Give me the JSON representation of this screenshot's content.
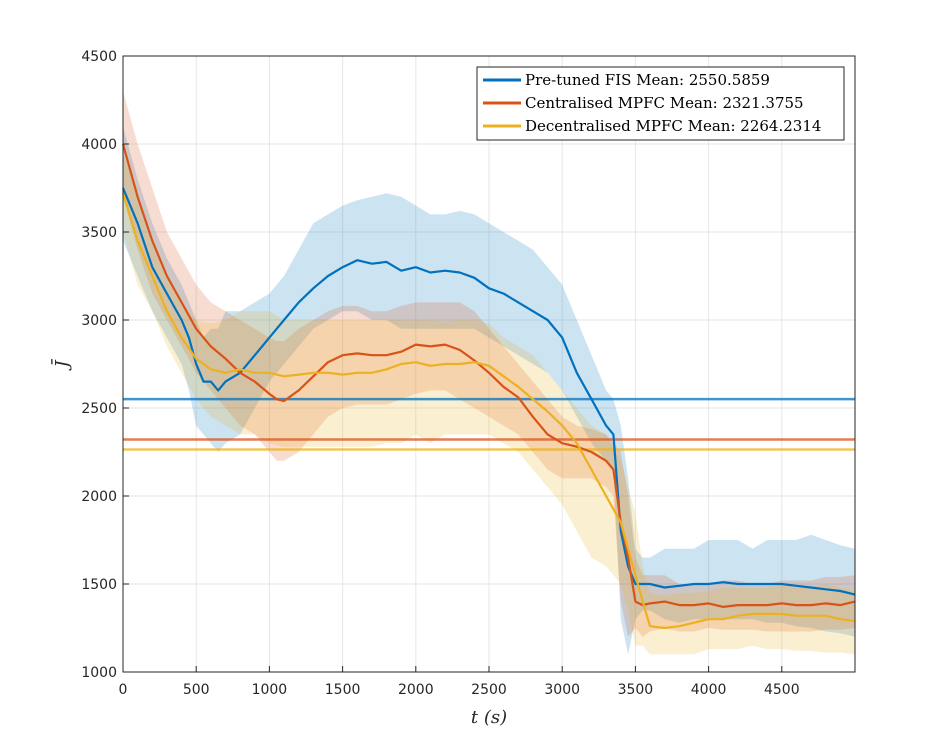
{
  "chart_data": {
    "type": "line",
    "xlabel": "t (s)",
    "ylabel": "J̄",
    "xlim": [
      0,
      5000
    ],
    "ylim": [
      1000,
      4500
    ],
    "xticks": [
      0,
      500,
      1000,
      1500,
      2000,
      2500,
      3000,
      3500,
      4000,
      4500
    ],
    "yticks": [
      1000,
      1500,
      2000,
      2500,
      3000,
      3500,
      4000,
      4500
    ],
    "grid": true,
    "legend_position": "top-right",
    "series": [
      {
        "name": "Pre-tuned FIS Mean: 2550.5859",
        "color": "#0072BD",
        "mean_value": 2550.5859,
        "x": [
          0,
          100,
          200,
          300,
          400,
          450,
          500,
          550,
          600,
          650,
          700,
          800,
          900,
          1000,
          1100,
          1200,
          1300,
          1400,
          1500,
          1600,
          1700,
          1800,
          1900,
          2000,
          2100,
          2200,
          2300,
          2400,
          2500,
          2600,
          2700,
          2800,
          2900,
          3000,
          3100,
          3200,
          3300,
          3350,
          3400,
          3450,
          3500,
          3550,
          3600,
          3700,
          3800,
          3900,
          4000,
          4100,
          4200,
          4300,
          4400,
          4500,
          4600,
          4700,
          4800,
          4900,
          5000
        ],
        "y": [
          3750,
          3550,
          3300,
          3150,
          3000,
          2900,
          2750,
          2650,
          2650,
          2600,
          2650,
          2700,
          2800,
          2900,
          3000,
          3100,
          3180,
          3250,
          3300,
          3340,
          3320,
          3330,
          3280,
          3300,
          3270,
          3280,
          3270,
          3240,
          3180,
          3150,
          3100,
          3050,
          3000,
          2900,
          2700,
          2550,
          2400,
          2350,
          1800,
          1600,
          1500,
          1500,
          1500,
          1480,
          1490,
          1500,
          1500,
          1510,
          1500,
          1500,
          1500,
          1500,
          1490,
          1480,
          1470,
          1460,
          1440
        ],
        "upper": [
          4100,
          3800,
          3550,
          3350,
          3200,
          3100,
          3000,
          2900,
          2950,
          2950,
          3050,
          3050,
          3100,
          3150,
          3250,
          3400,
          3550,
          3600,
          3650,
          3680,
          3700,
          3720,
          3700,
          3650,
          3600,
          3600,
          3620,
          3600,
          3550,
          3500,
          3450,
          3400,
          3300,
          3200,
          3000,
          2800,
          2600,
          2550,
          2400,
          2100,
          1700,
          1650,
          1650,
          1700,
          1700,
          1700,
          1750,
          1750,
          1750,
          1700,
          1750,
          1750,
          1750,
          1780,
          1750,
          1720,
          1700
        ],
        "lower": [
          3450,
          3250,
          3050,
          2900,
          2750,
          2600,
          2400,
          2350,
          2300,
          2250,
          2300,
          2350,
          2500,
          2650,
          2750,
          2850,
          2950,
          3000,
          3050,
          3050,
          3000,
          3000,
          2950,
          2950,
          2950,
          2950,
          2950,
          2950,
          2900,
          2850,
          2800,
          2750,
          2700,
          2600,
          2450,
          2300,
          2200,
          2150,
          1300,
          1100,
          1300,
          1350,
          1350,
          1300,
          1280,
          1300,
          1300,
          1300,
          1300,
          1300,
          1280,
          1280,
          1260,
          1250,
          1230,
          1220,
          1200
        ]
      },
      {
        "name": "Centralised MPFC Mean: 2321.3755",
        "color": "#D95319",
        "mean_value": 2321.3755,
        "x": [
          0,
          100,
          200,
          300,
          400,
          500,
          600,
          700,
          800,
          900,
          1000,
          1050,
          1100,
          1200,
          1300,
          1400,
          1500,
          1600,
          1700,
          1800,
          1900,
          2000,
          2100,
          2200,
          2300,
          2400,
          2500,
          2600,
          2700,
          2800,
          2900,
          3000,
          3100,
          3200,
          3300,
          3350,
          3400,
          3450,
          3500,
          3550,
          3600,
          3700,
          3800,
          3900,
          4000,
          4100,
          4200,
          4300,
          4400,
          4500,
          4600,
          4700,
          4800,
          4900,
          5000
        ],
        "y": [
          4000,
          3700,
          3450,
          3250,
          3100,
          2950,
          2850,
          2780,
          2700,
          2650,
          2580,
          2550,
          2540,
          2600,
          2680,
          2760,
          2800,
          2810,
          2800,
          2800,
          2820,
          2860,
          2850,
          2860,
          2830,
          2770,
          2700,
          2620,
          2560,
          2450,
          2350,
          2300,
          2280,
          2250,
          2200,
          2150,
          1850,
          1650,
          1400,
          1380,
          1390,
          1400,
          1380,
          1380,
          1390,
          1370,
          1380,
          1380,
          1380,
          1390,
          1380,
          1380,
          1390,
          1380,
          1400
        ],
        "upper": [
          4300,
          4000,
          3750,
          3500,
          3350,
          3200,
          3100,
          3050,
          3000,
          2950,
          2900,
          2880,
          2880,
          2950,
          3000,
          3050,
          3080,
          3080,
          3050,
          3050,
          3080,
          3100,
          3100,
          3100,
          3100,
          3050,
          2950,
          2850,
          2750,
          2650,
          2550,
          2450,
          2400,
          2380,
          2350,
          2300,
          2250,
          2000,
          1650,
          1550,
          1550,
          1550,
          1500,
          1500,
          1500,
          1520,
          1520,
          1500,
          1500,
          1520,
          1520,
          1520,
          1540,
          1540,
          1550
        ],
        "lower": [
          3700,
          3400,
          3150,
          3000,
          2850,
          2700,
          2600,
          2500,
          2400,
          2350,
          2250,
          2200,
          2200,
          2250,
          2350,
          2450,
          2500,
          2520,
          2520,
          2520,
          2550,
          2580,
          2600,
          2600,
          2550,
          2500,
          2450,
          2400,
          2350,
          2250,
          2150,
          2100,
          2100,
          2100,
          2050,
          2000,
          1400,
          1200,
          1250,
          1200,
          1230,
          1250,
          1230,
          1230,
          1250,
          1240,
          1240,
          1240,
          1230,
          1230,
          1230,
          1230,
          1240,
          1240,
          1250
        ]
      },
      {
        "name": "Decentralised MPFC Mean: 2264.2314",
        "color": "#EDB120",
        "mean_value": 2264.2314,
        "x": [
          0,
          100,
          200,
          300,
          400,
          500,
          600,
          700,
          800,
          900,
          1000,
          1100,
          1200,
          1300,
          1400,
          1500,
          1600,
          1700,
          1800,
          1900,
          2000,
          2100,
          2200,
          2300,
          2400,
          2500,
          2600,
          2700,
          2800,
          2900,
          3000,
          3100,
          3200,
          3300,
          3400,
          3450,
          3500,
          3550,
          3600,
          3700,
          3800,
          3900,
          4000,
          4100,
          4200,
          4300,
          4400,
          4500,
          4600,
          4700,
          4800,
          4900,
          5000
        ],
        "y": [
          3720,
          3450,
          3250,
          3050,
          2900,
          2780,
          2720,
          2700,
          2720,
          2700,
          2700,
          2680,
          2690,
          2700,
          2700,
          2690,
          2700,
          2700,
          2720,
          2750,
          2760,
          2740,
          2750,
          2750,
          2760,
          2740,
          2680,
          2620,
          2550,
          2480,
          2400,
          2300,
          2150,
          2000,
          1850,
          1700,
          1550,
          1400,
          1260,
          1250,
          1260,
          1280,
          1300,
          1300,
          1320,
          1330,
          1330,
          1330,
          1320,
          1320,
          1320,
          1300,
          1290
        ],
        "upper": [
          3950,
          3700,
          3450,
          3250,
          3100,
          3000,
          2980,
          3000,
          3050,
          3050,
          3050,
          3000,
          3000,
          3000,
          3000,
          3000,
          3000,
          3000,
          3000,
          3000,
          3000,
          3000,
          2990,
          3000,
          3000,
          2980,
          2900,
          2850,
          2800,
          2700,
          2600,
          2500,
          2400,
          2350,
          2200,
          2050,
          1900,
          1600,
          1450,
          1430,
          1450,
          1450,
          1460,
          1480,
          1480,
          1480,
          1480,
          1500,
          1480,
          1480,
          1500,
          1480,
          1460
        ],
        "lower": [
          3500,
          3200,
          3050,
          2850,
          2700,
          2550,
          2450,
          2400,
          2350,
          2350,
          2300,
          2280,
          2280,
          2280,
          2280,
          2280,
          2280,
          2280,
          2300,
          2300,
          2350,
          2300,
          2350,
          2350,
          2350,
          2350,
          2300,
          2250,
          2150,
          2050,
          1950,
          1800,
          1650,
          1600,
          1500,
          1350,
          1150,
          1150,
          1100,
          1100,
          1100,
          1100,
          1130,
          1130,
          1130,
          1150,
          1130,
          1130,
          1120,
          1120,
          1110,
          1110,
          1100
        ]
      }
    ]
  }
}
